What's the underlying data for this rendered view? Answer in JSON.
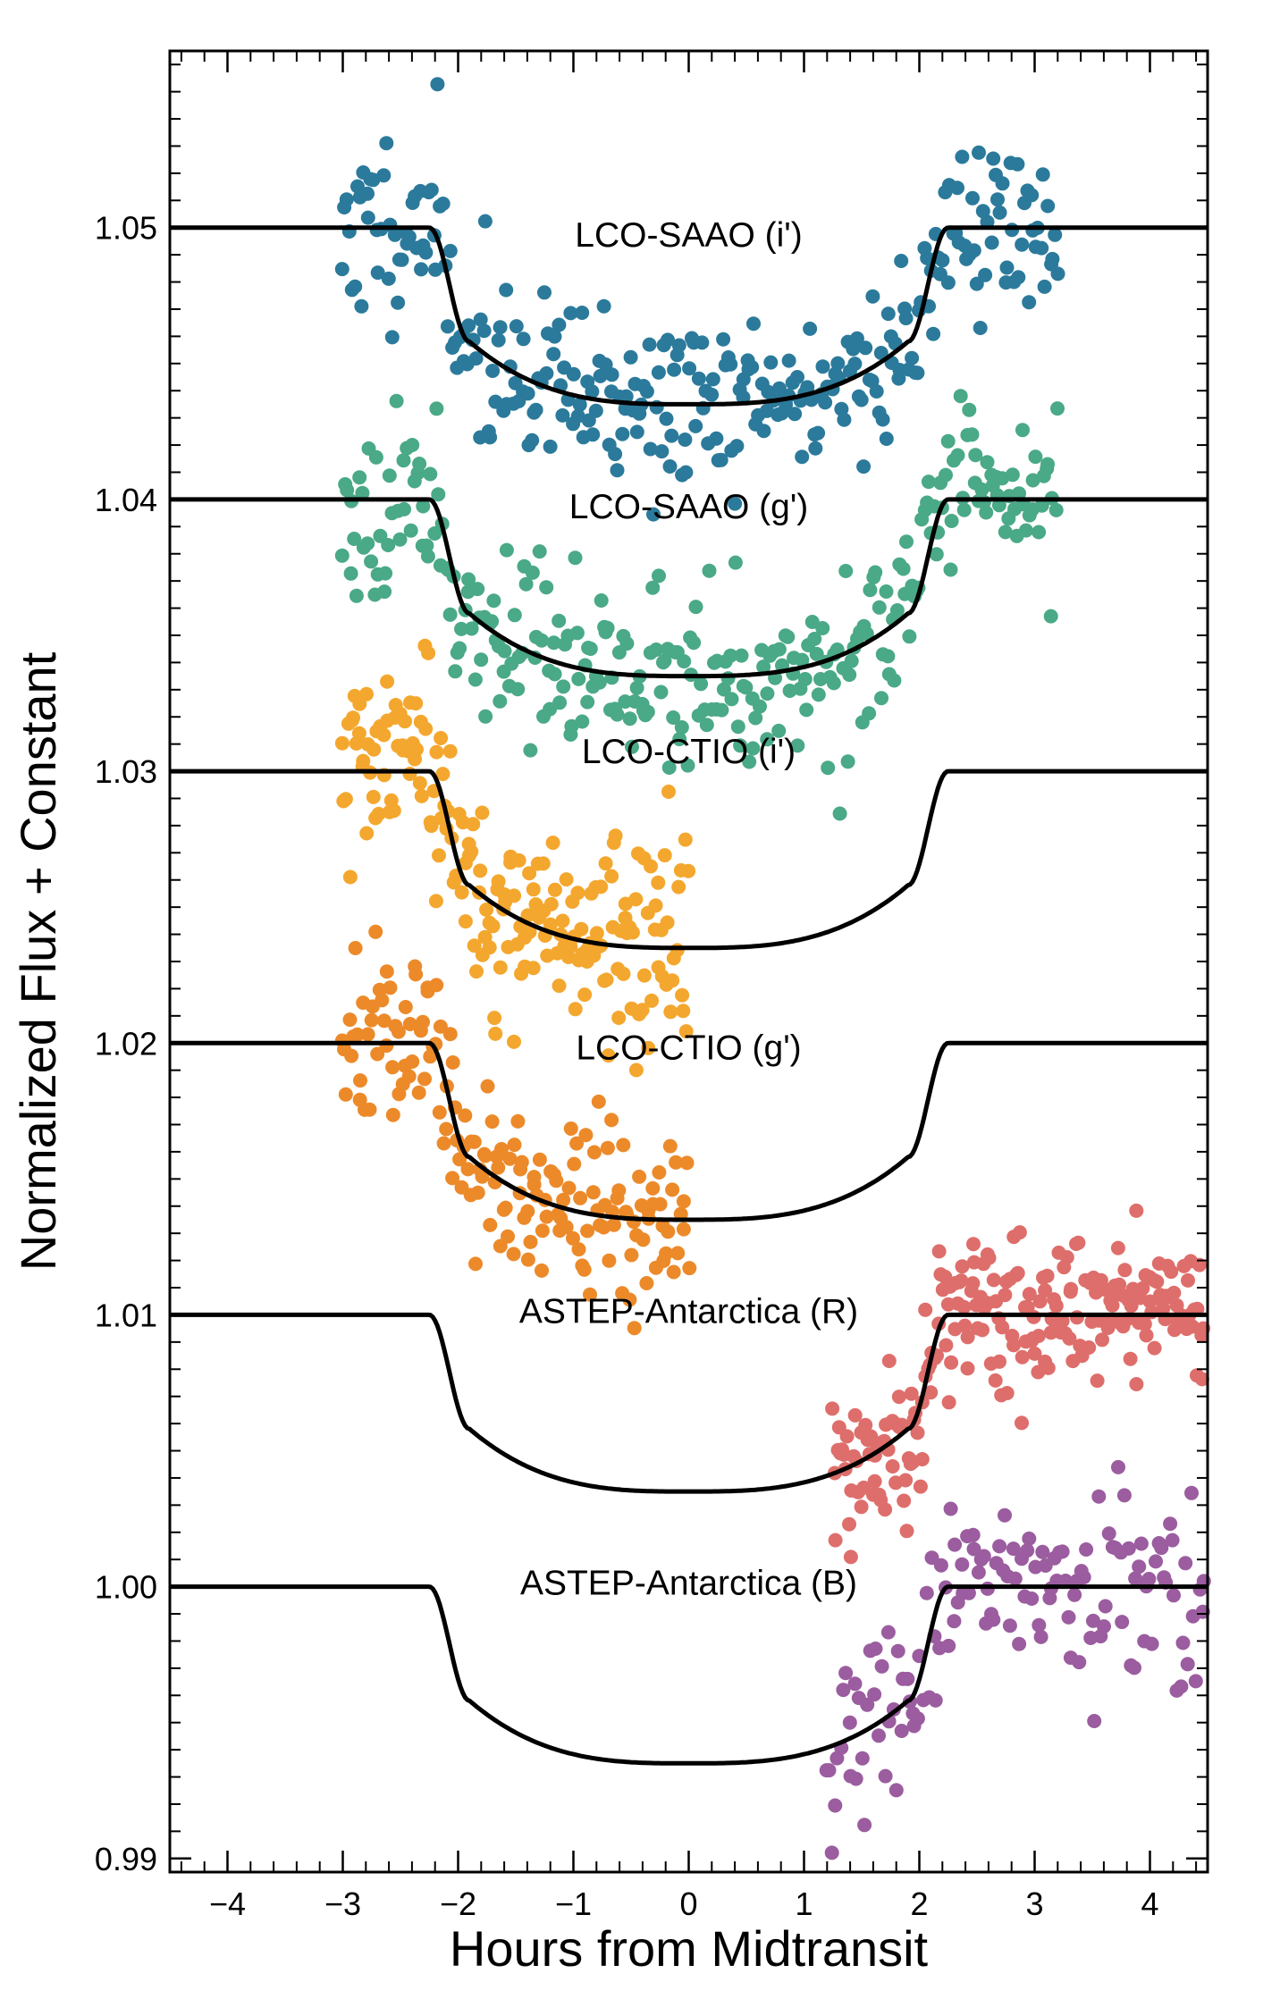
{
  "chart_data": {
    "type": "scatter",
    "title": "",
    "xlabel": "Hours from Midtransit",
    "ylabel": "Normalized Flux + Constant",
    "xlim": [
      -4.5,
      4.5
    ],
    "ylim": [
      0.9895,
      1.0565
    ],
    "grid": false,
    "xticks": [
      -4,
      -3,
      -2,
      -1,
      0,
      1,
      2,
      3,
      4
    ],
    "xtick_labels": [
      "−4",
      "−3",
      "−2",
      "−1",
      "0",
      "1",
      "2",
      "3",
      "4"
    ],
    "yticks": [
      0.99,
      1.0,
      1.01,
      1.02,
      1.03,
      1.04,
      1.05
    ],
    "ytick_labels": [
      "0.99",
      "1.00",
      "1.01",
      "1.02",
      "1.03",
      "1.04",
      "1.05"
    ],
    "model": {
      "description": "transit model curve, same shape for every panel, shifted by offset",
      "x": [
        -4.5,
        -2.3,
        -2.2,
        -2.1,
        -2.0,
        -1.9,
        -1.5,
        -1.0,
        -0.5,
        0.0,
        0.5,
        1.0,
        1.5,
        1.9,
        2.0,
        2.1,
        2.2,
        2.3,
        4.5
      ],
      "depth": [
        0.0,
        0.0,
        -0.0003,
        -0.0021,
        -0.0044,
        -0.0059,
        -0.0046,
        -0.0056,
        -0.0063,
        -0.0065,
        -0.0063,
        -0.0056,
        -0.0046,
        -0.0059,
        -0.0044,
        -0.0021,
        -0.0003,
        0.0,
        0.0
      ]
    },
    "series": [
      {
        "name": "LCO-SAAO (i')",
        "color": "#2b7a9b",
        "offset": 1.05,
        "x_range": [
          -3.0,
          3.2
        ],
        "n_points": 300,
        "scatter": 0.0016,
        "seed": 11
      },
      {
        "name": "LCO-SAAO (g')",
        "color": "#4aa987",
        "offset": 1.04,
        "x_range": [
          -3.0,
          3.2
        ],
        "n_points": 300,
        "scatter": 0.0016,
        "seed": 23
      },
      {
        "name": "LCO-CTIO (i')",
        "color": "#f4a72e",
        "offset": 1.03,
        "x_range": [
          -3.0,
          0.0
        ],
        "n_points": 200,
        "scatter": 0.0019,
        "seed": 37
      },
      {
        "name": "LCO-CTIO (g')",
        "color": "#ec8a2a",
        "offset": 1.02,
        "x_range": [
          -3.0,
          0.0
        ],
        "n_points": 170,
        "scatter": 0.0016,
        "seed": 41
      },
      {
        "name": "ASTEP-Antarctica (R)",
        "color": "#de6e6b",
        "offset": 1.01,
        "x_range": [
          1.25,
          4.5
        ],
        "n_points": 230,
        "scatter": 0.0014,
        "seed": 53
      },
      {
        "name": "ASTEP-Antarctica (B)",
        "color": "#9b5d9f",
        "offset": 1.0,
        "x_range": [
          1.2,
          4.5
        ],
        "n_points": 140,
        "scatter": 0.0017,
        "seed": 67
      }
    ]
  },
  "labels": [
    {
      "text": "LCO-SAAO (i')",
      "x": 0.0,
      "y": 1.0493
    },
    {
      "text": "LCO-SAAO (g')",
      "x": 0.0,
      "y": 1.0393
    },
    {
      "text": "LCO-CTIO (i')",
      "x": 0.0,
      "y": 1.0303
    },
    {
      "text": "LCO-CTIO (g')",
      "x": 0.0,
      "y": 1.0194
    },
    {
      "text": "ASTEP-Antarctica (R)",
      "x": 0.0,
      "y": 1.0097
    },
    {
      "text": "ASTEP-Antarctica (B)",
      "x": 0.0,
      "y": 0.9997
    }
  ]
}
